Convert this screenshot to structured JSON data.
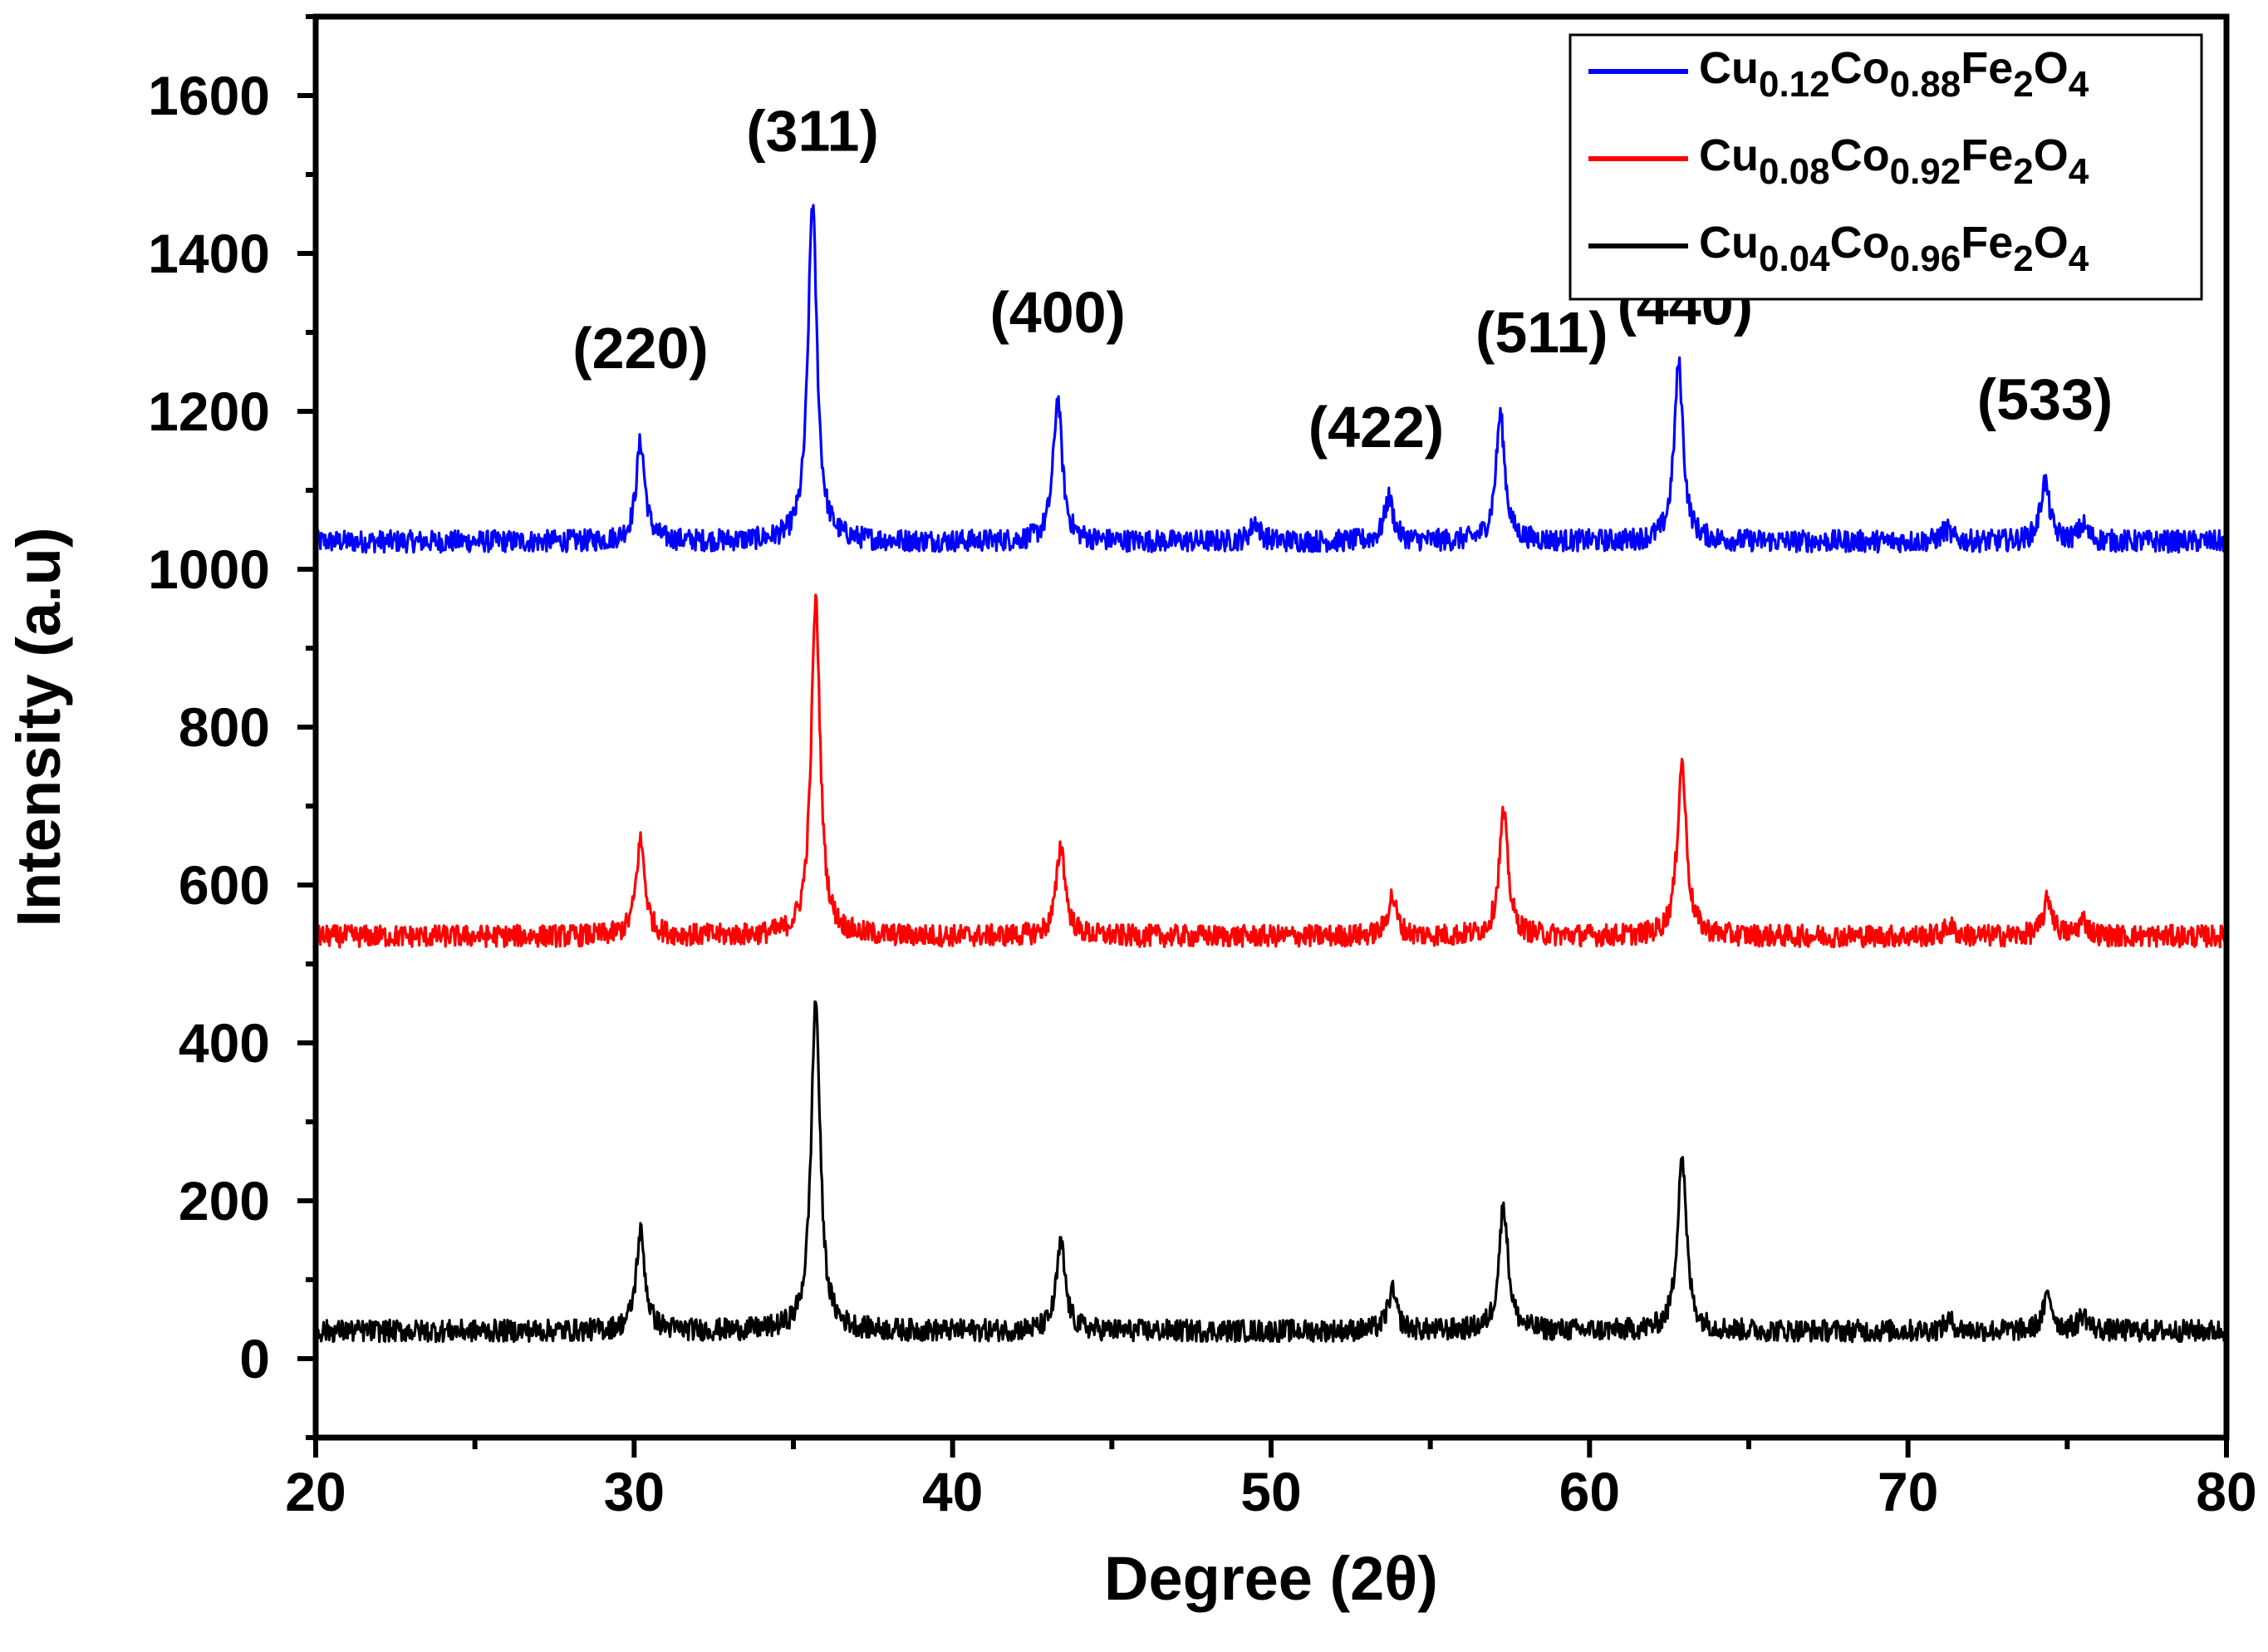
{
  "chart_data": {
    "type": "line",
    "xlabel": "Degree (2θ)",
    "ylabel": "Intensity (a.u)",
    "xlim": [
      20,
      80
    ],
    "ylim": [
      -100,
      1700
    ],
    "xticks": [
      20,
      30,
      40,
      50,
      60,
      70,
      80
    ],
    "xtick_labels": [
      "20",
      "30",
      "40",
      "50",
      "60",
      "70",
      "80"
    ],
    "yticks": [
      0,
      200,
      400,
      600,
      800,
      1000,
      1200,
      1400,
      1600
    ],
    "ytick_labels": [
      "0",
      "200",
      "400",
      "600",
      "800",
      "1000",
      "1200",
      "1400",
      "1600"
    ],
    "grid": false,
    "legend_position": "top-right",
    "series": [
      {
        "name": "Cu0.12Co0.88Fe2O4",
        "legend": [
          {
            "t": "Cu",
            "sub": false
          },
          {
            "t": "0.12",
            "sub": true
          },
          {
            "t": "Co",
            "sub": false
          },
          {
            "t": "0.88",
            "sub": true
          },
          {
            "t": "Fe",
            "sub": false
          },
          {
            "t": "2",
            "sub": true
          },
          {
            "t": "O",
            "sub": false
          },
          {
            "t": "4",
            "sub": true
          }
        ],
        "color": "#0000ff",
        "baseline": 1035,
        "peaks": [
          {
            "x": 30.2,
            "y": 1160
          },
          {
            "x": 35.6,
            "y": 1465
          },
          {
            "x": 43.3,
            "y": 1215
          },
          {
            "x": 49.5,
            "y": 1060
          },
          {
            "x": 53.7,
            "y": 1090
          },
          {
            "x": 57.2,
            "y": 1195
          },
          {
            "x": 62.8,
            "y": 1260
          },
          {
            "x": 71.2,
            "y": 1050
          },
          {
            "x": 74.3,
            "y": 1110
          },
          {
            "x": 75.5,
            "y": 1055
          }
        ]
      },
      {
        "name": "Cu0.08Co0.92Fe2O4",
        "legend": [
          {
            "t": "Cu",
            "sub": false
          },
          {
            "t": "0.08",
            "sub": true
          },
          {
            "t": "Co",
            "sub": false
          },
          {
            "t": "0.92",
            "sub": true
          },
          {
            "t": "Fe",
            "sub": false
          },
          {
            "t": "2",
            "sub": true
          },
          {
            "t": "O",
            "sub": false
          },
          {
            "t": "4",
            "sub": true
          }
        ],
        "color": "#ff0000",
        "baseline": 535,
        "peaks": [
          {
            "x": 30.2,
            "y": 655
          },
          {
            "x": 35.7,
            "y": 960
          },
          {
            "x": 43.4,
            "y": 650
          },
          {
            "x": 53.8,
            "y": 585
          },
          {
            "x": 57.3,
            "y": 690
          },
          {
            "x": 62.9,
            "y": 755
          },
          {
            "x": 71.3,
            "y": 548
          },
          {
            "x": 74.4,
            "y": 582
          },
          {
            "x": 75.5,
            "y": 555
          }
        ]
      },
      {
        "name": "Cu0.04Co0.96Fe2O4",
        "legend": [
          {
            "t": "Cu",
            "sub": false
          },
          {
            "t": "0.04",
            "sub": true
          },
          {
            "t": "Co",
            "sub": false
          },
          {
            "t": "0.96",
            "sub": true
          },
          {
            "t": "Fe",
            "sub": false
          },
          {
            "t": "2",
            "sub": true
          },
          {
            "t": "O",
            "sub": false
          },
          {
            "t": "4",
            "sub": true
          }
        ],
        "color": "#000000",
        "baseline": 35,
        "peaks": [
          {
            "x": 30.2,
            "y": 160
          },
          {
            "x": 35.7,
            "y": 455
          },
          {
            "x": 43.4,
            "y": 145
          },
          {
            "x": 53.8,
            "y": 85
          },
          {
            "x": 57.3,
            "y": 195
          },
          {
            "x": 62.9,
            "y": 258
          },
          {
            "x": 71.3,
            "y": 48
          },
          {
            "x": 74.4,
            "y": 80
          },
          {
            "x": 75.5,
            "y": 55
          }
        ]
      }
    ],
    "annotations": [
      {
        "text": "(220)",
        "x": 30.2,
        "y": 1255
      },
      {
        "text": "(311)",
        "x": 35.6,
        "y": 1530
      },
      {
        "text": "(400)",
        "x": 43.3,
        "y": 1300
      },
      {
        "text": "(422)",
        "x": 53.3,
        "y": 1155
      },
      {
        "text": "(511)",
        "x": 58.5,
        "y": 1275
      },
      {
        "text": "(440)",
        "x": 63.0,
        "y": 1310
      },
      {
        "text": "(533)",
        "x": 74.3,
        "y": 1190
      }
    ]
  }
}
